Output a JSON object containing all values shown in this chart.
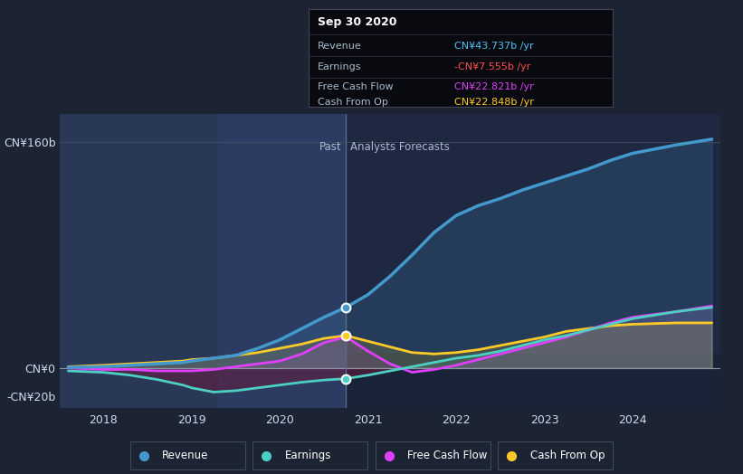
{
  "bg_color": "#1c2333",
  "plot_bg_color": "#1c2333",
  "ylabel_top": "CN¥160b",
  "ylabel_zero": "CN¥0",
  "ylabel_neg": "-CN¥20b",
  "xlabel_vals": [
    "2018",
    "2019",
    "2020",
    "2021",
    "2022",
    "2023",
    "2024"
  ],
  "past_label": "Past",
  "forecast_label": "Analysts Forecasts",
  "divider_x": 2020.75,
  "ylim": [
    -28,
    180
  ],
  "xlim": [
    2017.5,
    2025.0
  ],
  "yticks": [
    -20,
    0,
    160
  ],
  "xticks": [
    2018,
    2019,
    2020,
    2021,
    2022,
    2023,
    2024
  ],
  "tooltip": {
    "date": "Sep 30 2020",
    "revenue_label": "Revenue",
    "revenue_val": "CN¥43.737b /yr",
    "revenue_color": "#4fc3f7",
    "earnings_label": "Earnings",
    "earnings_val": "-CN¥7.555b /yr",
    "earnings_color": "#ff5252",
    "fcf_label": "Free Cash Flow",
    "fcf_val": "CN¥22.821b /yr",
    "fcf_color": "#e040fb",
    "cashop_label": "Cash From Op",
    "cashop_val": "CN¥22.848b /yr",
    "cashop_color": "#ffca28"
  },
  "colors": {
    "revenue": "#4499cc",
    "earnings": "#4dd0c4",
    "fcf": "#e040fb",
    "cashop": "#ffca28"
  },
  "past_bg": "#263050",
  "future_bg": "#1e2840",
  "revenue": {
    "x": [
      2017.6,
      2018.0,
      2018.3,
      2018.6,
      2018.9,
      2019.0,
      2019.25,
      2019.5,
      2019.75,
      2020.0,
      2020.25,
      2020.5,
      2020.75,
      2021.0,
      2021.25,
      2021.5,
      2021.75,
      2022.0,
      2022.25,
      2022.5,
      2022.75,
      2023.0,
      2023.25,
      2023.5,
      2023.75,
      2024.0,
      2024.5,
      2024.9
    ],
    "y": [
      0.5,
      1,
      2,
      3,
      4,
      5,
      7,
      9,
      14,
      20,
      28,
      36,
      43,
      52,
      65,
      80,
      96,
      108,
      115,
      120,
      126,
      131,
      136,
      141,
      147,
      152,
      158,
      162
    ]
  },
  "earnings": {
    "x": [
      2017.6,
      2018.0,
      2018.3,
      2018.6,
      2018.9,
      2019.0,
      2019.25,
      2019.5,
      2019.75,
      2020.0,
      2020.25,
      2020.5,
      2020.75,
      2021.0,
      2021.25,
      2021.5,
      2021.75,
      2022.0,
      2022.25,
      2022.5,
      2022.75,
      2023.0,
      2023.25,
      2023.5,
      2023.75,
      2024.0,
      2024.5,
      2024.9
    ],
    "y": [
      -2,
      -3,
      -5,
      -8,
      -12,
      -14,
      -17,
      -16,
      -14,
      -12,
      -10,
      -8.5,
      -7.5,
      -5,
      -2,
      1,
      4,
      7,
      9,
      12,
      16,
      20,
      23,
      27,
      31,
      35,
      40,
      43
    ]
  },
  "fcf": {
    "x": [
      2017.6,
      2018.0,
      2018.3,
      2018.6,
      2018.9,
      2019.0,
      2019.25,
      2019.5,
      2019.75,
      2020.0,
      2020.25,
      2020.5,
      2020.75,
      2021.0,
      2021.25,
      2021.5,
      2021.75,
      2022.0,
      2022.25,
      2022.5,
      2022.75,
      2023.0,
      2023.25,
      2023.5,
      2023.75,
      2024.0,
      2024.5,
      2024.9
    ],
    "y": [
      0,
      -1,
      -1,
      -2,
      -2,
      -2,
      -1,
      1,
      3,
      5,
      10,
      18,
      22,
      12,
      3,
      -3,
      -1,
      2,
      6,
      10,
      14,
      18,
      22,
      27,
      32,
      36,
      40,
      44
    ]
  },
  "cashop": {
    "x": [
      2017.6,
      2018.0,
      2018.3,
      2018.6,
      2018.9,
      2019.0,
      2019.25,
      2019.5,
      2019.75,
      2020.0,
      2020.25,
      2020.5,
      2020.75,
      2021.0,
      2021.25,
      2021.5,
      2021.75,
      2022.0,
      2022.25,
      2022.5,
      2022.75,
      2023.0,
      2023.25,
      2023.5,
      2023.75,
      2024.0,
      2024.5,
      2024.9
    ],
    "y": [
      1,
      2,
      3,
      4,
      5,
      6,
      7,
      9,
      11,
      14,
      17,
      21,
      23,
      19,
      15,
      11,
      10,
      11,
      13,
      16,
      19,
      22,
      26,
      28,
      30,
      31,
      32,
      32
    ]
  }
}
